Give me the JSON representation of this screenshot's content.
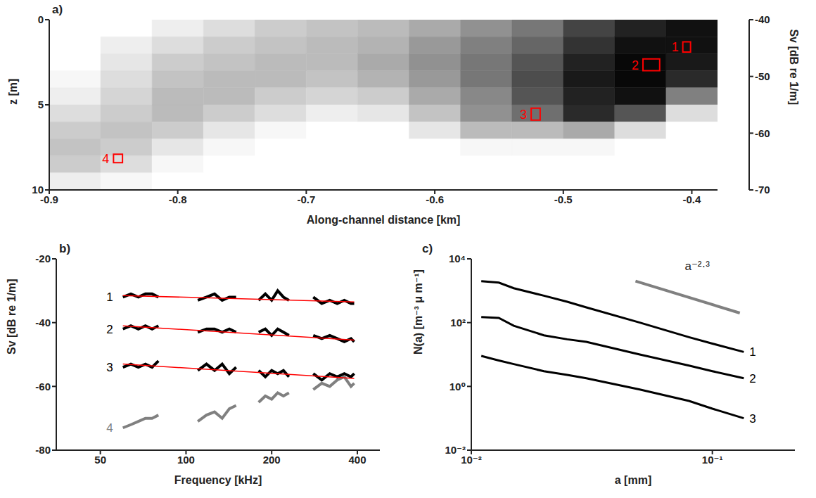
{
  "chart_data": [
    {
      "type": "heatmap",
      "title": "a)",
      "x_label": "Along-channel distance [km]",
      "y_label": "z [m]",
      "xlim": [
        -0.9,
        -0.38
      ],
      "xticks": [
        -0.9,
        -0.8,
        -0.7,
        -0.6,
        -0.5,
        -0.4
      ],
      "ylim": [
        0,
        10
      ],
      "yticks": [
        0,
        5,
        10
      ],
      "heatmap": {
        "x_edges": [
          -0.9,
          -0.86,
          -0.82,
          -0.78,
          -0.74,
          -0.7,
          -0.66,
          -0.62,
          -0.58,
          -0.54,
          -0.5,
          -0.46,
          -0.42,
          -0.38
        ],
        "z_edges": [
          0,
          1,
          2,
          3,
          4,
          5,
          6,
          7,
          8,
          9,
          10
        ],
        "cells": [
          [
            -70,
            -70,
            -68,
            -66,
            -64,
            -63,
            -62,
            -60,
            -57,
            -54,
            -48,
            -44,
            -42
          ],
          [
            -70,
            -68,
            -66,
            -64,
            -63,
            -62,
            -61,
            -58,
            -55,
            -52,
            -46,
            -42,
            -42
          ],
          [
            -70,
            -67,
            -64,
            -63,
            -62,
            -62,
            -60,
            -57,
            -54,
            -50,
            -44,
            -41,
            -43
          ],
          [
            -69,
            -66,
            -63,
            -62,
            -62,
            -63,
            -61,
            -58,
            -54,
            -49,
            -43,
            -41,
            -45
          ],
          [
            -68,
            -65,
            -62,
            -62,
            -64,
            -65,
            -64,
            -60,
            -56,
            -50,
            -44,
            -42,
            -55
          ],
          [
            -66,
            -64,
            -62,
            -64,
            -66,
            -68,
            -67,
            -63,
            -57,
            -53,
            -45,
            -50,
            -66
          ],
          [
            -64,
            -63,
            -64,
            -67,
            -69,
            -70,
            -70,
            -67,
            -62,
            -62,
            -60,
            -66,
            -70
          ],
          [
            -63,
            -64,
            -67,
            -69,
            -70,
            -70,
            -70,
            -70,
            -69,
            -69,
            -69,
            -70,
            -70
          ],
          [
            -64,
            -66,
            -69,
            -70,
            -70,
            -70,
            -70,
            -70,
            -70,
            -70,
            -70,
            -70,
            -70
          ],
          [
            -68,
            -69,
            -70,
            -70,
            -70,
            -70,
            -70,
            -70,
            -70,
            -70,
            -70,
            -70,
            -70
          ]
        ],
        "colorbar": {
          "range": [
            -70,
            -40
          ],
          "ticks": [
            -70,
            -60,
            -50,
            -40
          ],
          "label": "Sv [dB re 1/m]"
        }
      },
      "boxes": [
        {
          "label": "1",
          "x": [
            -0.407,
            -0.401
          ],
          "z": [
            1.3,
            1.9
          ],
          "color": "#ff0000"
        },
        {
          "label": "2",
          "x": [
            -0.438,
            -0.425
          ],
          "z": [
            2.3,
            3.0
          ],
          "color": "#ff0000"
        },
        {
          "label": "3",
          "x": [
            -0.525,
            -0.518
          ],
          "z": [
            5.2,
            5.9
          ],
          "color": "#ff0000"
        },
        {
          "label": "4",
          "x": [
            -0.85,
            -0.843
          ],
          "z": [
            7.9,
            8.4
          ],
          "color": "#ff0000"
        }
      ]
    },
    {
      "type": "line",
      "title": "b)",
      "x_label": "Frequency [kHz]",
      "y_label": "Sv [dB re 1/m]",
      "log": "x",
      "xlim": [
        35,
        480
      ],
      "xticks": [
        50,
        100,
        200,
        400
      ],
      "ylim": [
        -80,
        -20
      ],
      "yticks": [
        -80,
        -60,
        -40,
        -20
      ],
      "x": [
        60,
        64,
        68,
        72,
        76,
        80,
        95,
        110,
        118,
        126,
        134,
        142,
        150,
        165,
        180,
        190,
        200,
        210,
        220,
        230,
        255,
        280,
        300,
        320,
        340,
        360,
        380,
        390
      ],
      "series": [
        {
          "name": "1",
          "color": "#000000",
          "values": [
            -32,
            -31,
            -32,
            -31,
            -31,
            -32,
            null,
            -33,
            -32,
            -31,
            -33,
            -32,
            -32,
            null,
            -33,
            -31,
            -33,
            -30,
            -32,
            -33,
            null,
            -32,
            -34,
            -33,
            -34,
            -33,
            -34,
            -34
          ],
          "fit": {
            "x": [
              60,
              390
            ],
            "values": [
              -31.5,
              -33.5
            ],
            "color": "#ff0000"
          }
        },
        {
          "name": "2",
          "color": "#000000",
          "values": [
            -42,
            -41,
            -42,
            -41,
            -42,
            -41,
            null,
            -43,
            -42,
            -42,
            -43,
            -42,
            -43,
            null,
            -43,
            -42,
            -44,
            -42,
            -43,
            -44,
            null,
            -44,
            -45,
            -44,
            -45,
            -46,
            -45,
            -46
          ],
          "fit": {
            "x": [
              60,
              390
            ],
            "values": [
              -41,
              -45.5
            ],
            "color": "#ff0000"
          }
        },
        {
          "name": "3",
          "color": "#000000",
          "values": [
            -54,
            -53,
            -54,
            -53,
            -54,
            -52,
            null,
            -55,
            -53,
            -55,
            -53,
            -56,
            -54,
            null,
            -55,
            -57,
            -55,
            -56,
            -55,
            -57,
            null,
            -56,
            -58,
            -56,
            -57,
            -56,
            -57,
            -56
          ],
          "fit": {
            "x": [
              60,
              390
            ],
            "values": [
              -53,
              -57.5
            ],
            "color": "#ff0000"
          }
        },
        {
          "name": "4",
          "color": "#808080",
          "values": [
            -73,
            -72,
            -71,
            -70,
            -70,
            -69,
            null,
            -71,
            -69,
            -68,
            -70,
            -67,
            -66,
            null,
            -65,
            -63,
            -64,
            -62,
            -63,
            -62,
            null,
            -61,
            -59,
            -60,
            -58,
            -57,
            -60,
            -59
          ]
        }
      ]
    },
    {
      "type": "line",
      "title": "c)",
      "x_label": "a [mm]",
      "y_label": "N(a) [m⁻³ μ m⁻¹]",
      "log": true,
      "xlim": [
        0.01,
        0.22
      ],
      "xticks": [
        {
          "value": 0.01,
          "label": "10⁻²"
        },
        {
          "value": 0.1,
          "label": "10⁻¹"
        }
      ],
      "ylim": [
        0.01,
        10000
      ],
      "yticks": [
        {
          "value": 0.01,
          "label": "10⁻²"
        },
        {
          "value": 1,
          "label": "10⁰"
        },
        {
          "value": 100,
          "label": "10²"
        },
        {
          "value": 10000,
          "label": "10⁴"
        }
      ],
      "x": [
        0.011,
        0.013,
        0.015,
        0.02,
        0.025,
        0.03,
        0.05,
        0.08,
        0.1,
        0.135
      ],
      "series": [
        {
          "name": "1",
          "color": "#000000",
          "values": [
            2000,
            1800,
            1200,
            700,
            450,
            300,
            100,
            35,
            22,
            12
          ]
        },
        {
          "name": "2",
          "color": "#000000",
          "values": [
            150,
            140,
            80,
            40,
            30,
            25,
            10,
            4.5,
            3,
            1.8
          ]
        },
        {
          "name": "3",
          "color": "#000000",
          "values": [
            9,
            6.5,
            5,
            3,
            2.3,
            1.8,
            0.8,
            0.35,
            0.2,
            0.1
          ]
        }
      ],
      "reference": {
        "label": "a⁻²·³",
        "x": [
          0.048,
          0.13
        ],
        "values": [
          2000,
          200
        ],
        "color": "#808080"
      }
    }
  ]
}
